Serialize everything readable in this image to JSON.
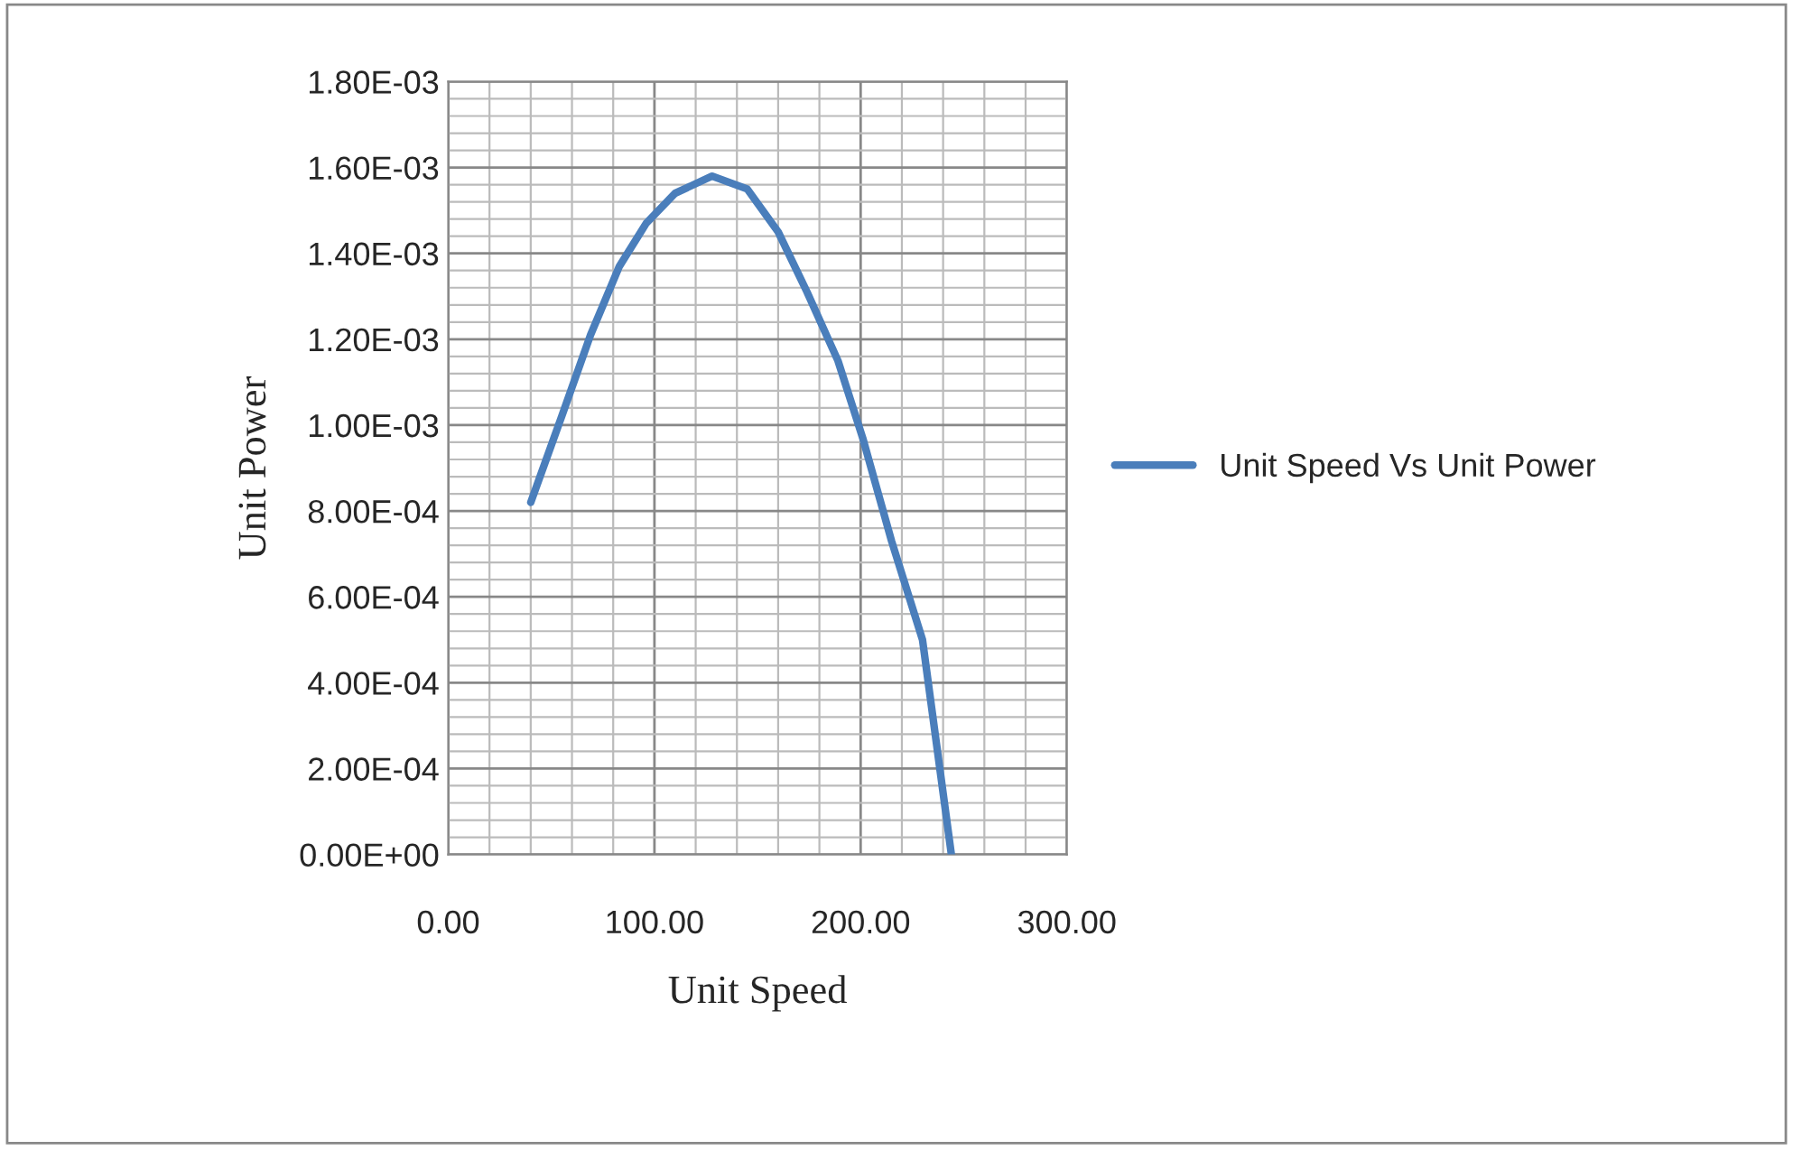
{
  "chart_data": {
    "type": "line",
    "xlabel": "Unit Speed",
    "ylabel": "Unit Power",
    "x": [
      40,
      55,
      69,
      83,
      96,
      110,
      128,
      145,
      160,
      174,
      189,
      201,
      215,
      230,
      244
    ],
    "series": [
      {
        "name": "Unit Speed Vs Unit Power",
        "color": "#4a7ebb",
        "values": [
          0.00082,
          0.00102,
          0.00121,
          0.00137,
          0.00147,
          0.00154,
          0.00158,
          0.00155,
          0.00145,
          0.00131,
          0.00115,
          0.00097,
          0.00073,
          0.0005,
          0.0
        ]
      }
    ],
    "xlim": [
      0,
      300
    ],
    "xticks": [
      {
        "value": 0,
        "label": "0.00"
      },
      {
        "value": 100,
        "label": "100.00"
      },
      {
        "value": 200,
        "label": "200.00"
      },
      {
        "value": 300,
        "label": "300.00"
      }
    ],
    "ylim": [
      0,
      0.0018
    ],
    "yticks": [
      {
        "value": 0,
        "label": "0.00E+00"
      },
      {
        "value": 0.0002,
        "label": "2.00E-04"
      },
      {
        "value": 0.0004,
        "label": "4.00E-04"
      },
      {
        "value": 0.0006,
        "label": "6.00E-04"
      },
      {
        "value": 0.0008,
        "label": "8.00E-04"
      },
      {
        "value": 0.001,
        "label": "1.00E-03"
      },
      {
        "value": 0.0012,
        "label": "1.20E-03"
      },
      {
        "value": 0.0014,
        "label": "1.40E-03"
      },
      {
        "value": 0.0016,
        "label": "1.60E-03"
      },
      {
        "value": 0.0018,
        "label": "1.80E-03"
      }
    ],
    "grid": true,
    "legend": "right",
    "marker": "none",
    "line_style": "solid"
  }
}
